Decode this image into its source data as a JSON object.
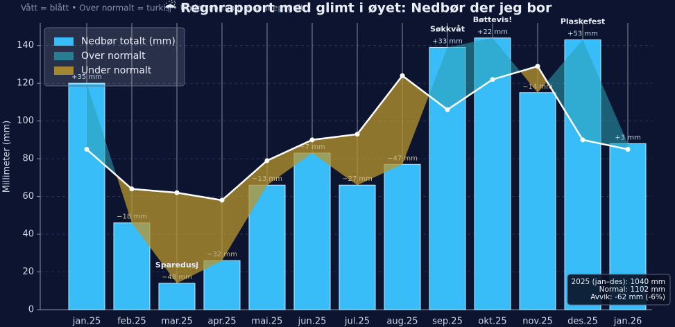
{
  "chart_data": {
    "type": "bar",
    "title": "☔ Regnrapport med glimt i øyet: Nedbør der jeg bor",
    "subtitle": "Vått = blått • Over normalt = turkis • Under normalt = sennepsgult",
    "y_label": "Millimeter (mm)",
    "categories": [
      "jan.25",
      "feb.25",
      "mar.25",
      "apr.25",
      "mai.25",
      "jun.25",
      "jul.25",
      "aug.25",
      "sep.25",
      "okt.25",
      "nov.25",
      "des.25",
      "jan.26"
    ],
    "series": [
      {
        "name": "Nedbør totalt (mm)",
        "color": "#38bdf8",
        "values": [
          120,
          46,
          14,
          26,
          66,
          83,
          66,
          77,
          139,
          144,
          115,
          143,
          88
        ]
      }
    ],
    "normal": {
      "color": "#ffffff",
      "values": [
        85,
        64,
        62,
        58,
        79,
        90,
        93,
        124,
        106,
        122,
        129,
        90,
        85
      ]
    },
    "fills": [
      {
        "name": "Over normalt",
        "color": "#2a9fb5"
      },
      {
        "name": "Under normalt",
        "color": "#b8962e"
      }
    ],
    "deviations": [
      35,
      -18,
      -48,
      -32,
      -13,
      -7,
      -27,
      -47,
      33,
      22,
      -14,
      53,
      3
    ],
    "deviation_labels": [
      "+35 mm",
      "−18 mm",
      "−48 mm",
      "−32 mm",
      "−13 mm",
      "−7 mm",
      "−27 mm",
      "−47 mm",
      "+33 mm",
      "+22 mm",
      "−14 mm",
      "+53 mm",
      "+3 mm"
    ],
    "annotations": [
      {
        "text": "Sparedusj",
        "category": "mar.25"
      },
      {
        "text": "Søkkvåt",
        "category": "sep.25"
      },
      {
        "text": "Bøttevis!",
        "category": "okt.25"
      },
      {
        "text": "Plaskefest",
        "category": "des.25"
      }
    ],
    "summary": [
      "2025 (jan–des): 1040 mm",
      "Normal: 1102 mm",
      "Avvik: -62 mm (-6%)"
    ],
    "ylim": [
      0,
      152
    ],
    "yticks": [
      0,
      20,
      40,
      60,
      80,
      100,
      120,
      140
    ],
    "grid": true
  }
}
